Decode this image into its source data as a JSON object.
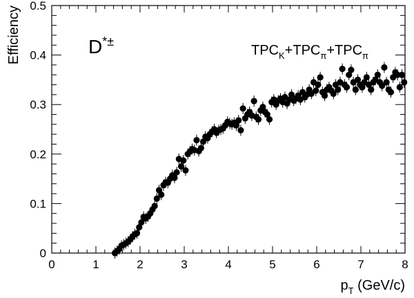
{
  "chart_data": {
    "type": "scatter",
    "particle_label": {
      "base": "D",
      "sup": "*±"
    },
    "selection_label": [
      {
        "text": "TPC",
        "sub": "K"
      },
      {
        "text": "+TPC",
        "sub": "π"
      },
      {
        "text": "+TPC",
        "sub": "π"
      }
    ],
    "ylabel": "Efficiency",
    "xlabel": {
      "p": "p",
      "sub": "T",
      "rest": " (GeV/c)"
    },
    "xlim": [
      0,
      8
    ],
    "ylim": [
      0,
      0.5
    ],
    "xticks": [
      0,
      1,
      2,
      3,
      4,
      5,
      6,
      7,
      8
    ],
    "yticks": [
      0,
      0.1,
      0.2,
      0.3,
      0.4,
      0.5
    ],
    "ytick_labels": [
      "0",
      "0.1",
      "0.2",
      "0.3",
      "0.4",
      "0.5"
    ],
    "marker_color": "#000000",
    "grid": false,
    "series": [
      {
        "x": [
          1.43,
          1.48,
          1.53,
          1.58,
          1.63,
          1.68,
          1.73,
          1.78,
          1.83,
          1.88,
          1.93,
          1.98,
          2.03,
          2.08,
          2.13,
          2.18,
          2.23,
          2.28,
          2.33,
          2.38,
          2.43,
          2.48,
          2.53,
          2.58,
          2.63,
          2.68,
          2.73,
          2.78,
          2.83,
          2.88,
          2.93,
          2.98,
          3.03,
          3.08,
          3.13,
          3.18,
          3.23,
          3.28,
          3.33,
          3.38,
          3.43,
          3.48,
          3.53,
          3.58,
          3.63,
          3.68,
          3.73,
          3.78,
          3.83,
          3.88,
          3.93,
          3.98,
          4.03,
          4.08,
          4.13,
          4.18,
          4.23,
          4.28,
          4.33,
          4.38,
          4.43,
          4.48,
          4.53,
          4.58,
          4.63,
          4.68,
          4.73,
          4.78,
          4.83,
          4.88,
          4.93,
          4.98,
          5.03,
          5.08,
          5.13,
          5.18,
          5.23,
          5.28,
          5.33,
          5.38,
          5.43,
          5.48,
          5.53,
          5.58,
          5.63,
          5.68,
          5.73,
          5.78,
          5.83,
          5.88,
          5.93,
          5.98,
          6.03,
          6.08,
          6.13,
          6.18,
          6.23,
          6.28,
          6.33,
          6.38,
          6.43,
          6.48,
          6.53,
          6.58,
          6.63,
          6.68,
          6.73,
          6.78,
          6.83,
          6.88,
          6.93,
          6.98,
          7.03,
          7.08,
          7.13,
          7.18,
          7.23,
          7.28,
          7.33,
          7.38,
          7.43,
          7.48,
          7.53,
          7.58,
          7.63,
          7.68,
          7.73,
          7.78,
          7.83,
          7.88,
          7.93,
          7.98
        ],
        "y": [
          0.0,
          0.004,
          0.008,
          0.015,
          0.017,
          0.02,
          0.023,
          0.028,
          0.033,
          0.038,
          0.04,
          0.052,
          0.062,
          0.073,
          0.07,
          0.074,
          0.08,
          0.088,
          0.095,
          0.11,
          0.127,
          0.118,
          0.137,
          0.143,
          0.142,
          0.15,
          0.157,
          0.152,
          0.163,
          0.19,
          0.175,
          0.187,
          0.167,
          0.2,
          0.205,
          0.21,
          0.208,
          0.228,
          0.206,
          0.212,
          0.225,
          0.235,
          0.232,
          0.24,
          0.245,
          0.25,
          0.243,
          0.248,
          0.25,
          0.252,
          0.258,
          0.265,
          0.262,
          0.26,
          0.263,
          0.258,
          0.268,
          0.248,
          0.292,
          0.272,
          0.28,
          0.285,
          0.278,
          0.307,
          0.275,
          0.27,
          0.288,
          0.295,
          0.285,
          0.28,
          0.27,
          0.305,
          0.31,
          0.3,
          0.308,
          0.312,
          0.305,
          0.315,
          0.302,
          0.31,
          0.32,
          0.308,
          0.312,
          0.318,
          0.31,
          0.325,
          0.315,
          0.32,
          0.33,
          0.322,
          0.345,
          0.328,
          0.34,
          0.355,
          0.325,
          0.318,
          0.33,
          0.335,
          0.328,
          0.322,
          0.34,
          0.33,
          0.345,
          0.372,
          0.34,
          0.335,
          0.36,
          0.37,
          0.345,
          0.33,
          0.35,
          0.34,
          0.335,
          0.345,
          0.355,
          0.34,
          0.33,
          0.345,
          0.35,
          0.36,
          0.345,
          0.338,
          0.375,
          0.345,
          0.33,
          0.325,
          0.355,
          0.365,
          0.36,
          0.335,
          0.36,
          0.345
        ]
      }
    ]
  }
}
